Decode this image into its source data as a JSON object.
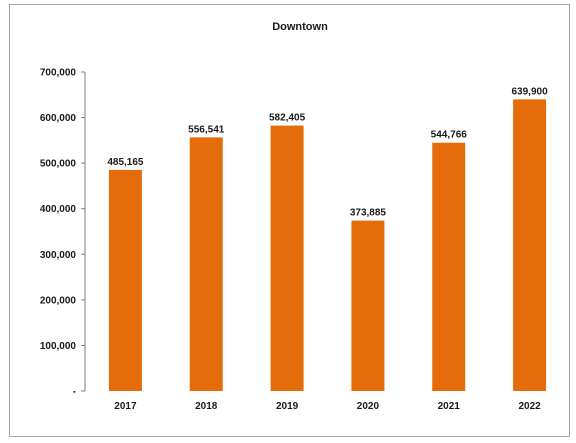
{
  "chart_data": {
    "type": "bar",
    "title": "Downtown",
    "categories": [
      "2017",
      "2018",
      "2019",
      "2020",
      "2021",
      "2022"
    ],
    "values": [
      485165,
      556541,
      582405,
      373885,
      544766,
      639900
    ],
    "value_labels": [
      "485,165",
      "556,541",
      "582,405",
      "373,885",
      "544,766",
      "639,900"
    ],
    "ylim": [
      0,
      700000
    ],
    "yticks": [
      0,
      100000,
      200000,
      300000,
      400000,
      500000,
      600000,
      700000
    ],
    "ytick_labels": [
      "-",
      "100,000",
      "200,000",
      "300,000",
      "400,000",
      "500,000",
      "600,000",
      "700,000"
    ],
    "xlabel": "",
    "ylabel": "",
    "grid": false,
    "bar_color": "#E46C0A"
  }
}
